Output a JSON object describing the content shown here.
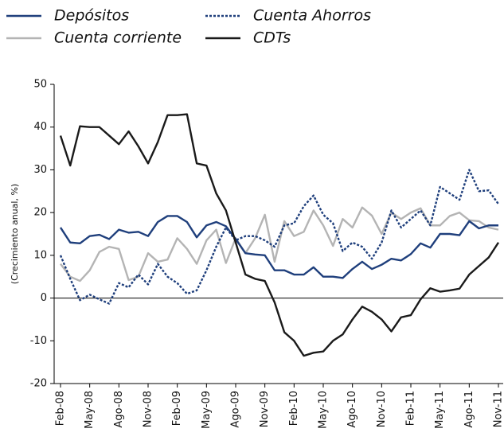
{
  "chart_data": {
    "type": "line",
    "y_label": "(Crecimiento anual, %)",
    "categories": [
      "Feb-08",
      null,
      null,
      "May-08",
      null,
      null,
      "Ago-08",
      null,
      null,
      "Nov-08",
      null,
      null,
      "Feb-09",
      null,
      null,
      "May-09",
      null,
      null,
      "Ago-09",
      null,
      null,
      "Nov-09",
      null,
      null,
      "Feb-10",
      null,
      null,
      "May-10",
      null,
      null,
      "Ago-10",
      null,
      null,
      "Nov-10",
      null,
      null,
      "Feb-11",
      null,
      null,
      "May-11",
      null,
      null,
      "Ago-11",
      null,
      null,
      "Nov-11"
    ],
    "series": [
      {
        "name": "Depósitos",
        "color": "#1f3f7c",
        "dash": "solid",
        "values": [
          16.5,
          13,
          12.8,
          14.5,
          14.8,
          13.8,
          16,
          15.3,
          15.5,
          14.5,
          17.8,
          19.2,
          19.2,
          17.8,
          14.2,
          17,
          17.8,
          16.8,
          13.8,
          10.5,
          10.2,
          10,
          6.5,
          6.5,
          5.5,
          5.5,
          7.2,
          5,
          5,
          4.7,
          6.8,
          8.5,
          6.8,
          7.8,
          9.2,
          8.8,
          10.3,
          12.8,
          11.8,
          15,
          15,
          14.7,
          18,
          16.3,
          17,
          17
        ]
      },
      {
        "name": "Cuenta Ahorros",
        "color": "#1f3f7c",
        "dash": "dotted",
        "values": [
          10,
          4.5,
          -0.5,
          0.8,
          -0.3,
          -1.3,
          3.5,
          2.5,
          5.5,
          3.2,
          8,
          5,
          3.5,
          1,
          1.8,
          6.5,
          12,
          16.5,
          13.5,
          14.5,
          14.5,
          13.5,
          12,
          17,
          17.5,
          21.5,
          24,
          19.5,
          17.5,
          11,
          13,
          12,
          9.2,
          13,
          20.5,
          16.5,
          18.5,
          20.5,
          17,
          26,
          24.5,
          23,
          30,
          25,
          25.2,
          22
        ]
      },
      {
        "name": "Cuenta corriente",
        "color": "#b4b4b4",
        "dash": "solid",
        "values": [
          8,
          5,
          4,
          6.5,
          10.8,
          12,
          11.5,
          4.2,
          5,
          10.5,
          8.5,
          9,
          14,
          11.5,
          8,
          13.5,
          16,
          8.2,
          14,
          10.5,
          14,
          19.5,
          8.5,
          18,
          14.5,
          15.5,
          20.5,
          17,
          12.2,
          18.5,
          16.5,
          21.2,
          19.3,
          15,
          20,
          18.5,
          20,
          21,
          17,
          17,
          19.2,
          20,
          18.2,
          18,
          16.5,
          16
        ]
      },
      {
        "name": "CDTs",
        "color": "#1a1a1a",
        "dash": "solid",
        "values": [
          38,
          31,
          40.2,
          40,
          40,
          38,
          36,
          39,
          35.5,
          31.5,
          36.5,
          42.8,
          42.8,
          43,
          31.5,
          31,
          24.5,
          20.5,
          13,
          5.5,
          4.5,
          4,
          -1,
          -8,
          -10,
          -13.5,
          -12.8,
          -12.5,
          -10,
          -8.5,
          -5,
          -2,
          -3.2,
          -5,
          -7.8,
          -4.5,
          -4,
          -0.3,
          2.3,
          1.5,
          1.8,
          2.2,
          5.5,
          7.5,
          9.5,
          13
        ]
      }
    ],
    "ylim": [
      -20,
      50
    ],
    "yticks": [
      -20,
      -10,
      0,
      10,
      20,
      30,
      40,
      50
    ],
    "zero_line": true,
    "grid": false
  }
}
